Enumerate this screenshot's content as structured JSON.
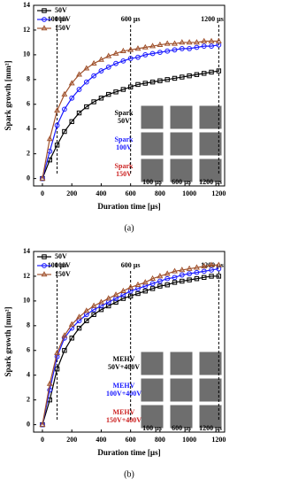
{
  "chart_data": [
    {
      "type": "line",
      "caption": "(a)",
      "xlabel": "Duration time [µs]",
      "ylabel": "Spark growth [mm²]",
      "x": [
        0,
        50,
        100,
        150,
        200,
        250,
        300,
        350,
        400,
        450,
        500,
        550,
        600,
        650,
        700,
        750,
        800,
        850,
        900,
        950,
        1000,
        1050,
        1100,
        1150,
        1200
      ],
      "series": [
        {
          "name": "50V",
          "color": "#000000",
          "marker": "square",
          "values": [
            0,
            1.5,
            2.7,
            3.8,
            4.6,
            5.3,
            5.8,
            6.2,
            6.5,
            6.8,
            7.0,
            7.2,
            7.4,
            7.6,
            7.7,
            7.8,
            7.9,
            8.0,
            8.1,
            8.2,
            8.3,
            8.4,
            8.5,
            8.6,
            8.7
          ]
        },
        {
          "name": "100V",
          "color": "#1a1aff",
          "marker": "circle",
          "values": [
            0,
            2.2,
            4.3,
            5.6,
            6.5,
            7.2,
            7.8,
            8.3,
            8.7,
            9.0,
            9.3,
            9.5,
            9.7,
            9.8,
            10.0,
            10.1,
            10.2,
            10.3,
            10.4,
            10.5,
            10.5,
            10.6,
            10.7,
            10.7,
            10.8
          ]
        },
        {
          "name": "150V",
          "color": "#a0522d",
          "marker": "triangle",
          "values": [
            0,
            3.2,
            5.5,
            6.8,
            7.7,
            8.4,
            8.9,
            9.3,
            9.6,
            9.9,
            10.1,
            10.3,
            10.4,
            10.5,
            10.6,
            10.7,
            10.8,
            10.9,
            10.9,
            11.0,
            11.0,
            11.0,
            11.1,
            11.1,
            11.1
          ]
        }
      ],
      "xlim": [
        -60,
        1240
      ],
      "xticks": [
        0,
        200,
        400,
        600,
        800,
        1000,
        1200
      ],
      "ylim": [
        -0.6,
        14
      ],
      "yticks": [
        0,
        2,
        4,
        6,
        8,
        10,
        12,
        14
      ],
      "markers": [
        {
          "x": 100,
          "label": "100 µs"
        },
        {
          "x": 600,
          "label": "600 µs"
        },
        {
          "x": 1200,
          "label": "1200 µs"
        }
      ],
      "inset_labels": [
        {
          "lines": [
            "Spark",
            "50V"
          ],
          "color": "#000000"
        },
        {
          "lines": [
            "Spark",
            "100V"
          ],
          "color": "#1a1aff"
        },
        {
          "lines": [
            "Spark",
            "150V"
          ],
          "color": "#cc2222"
        }
      ],
      "inset_columns": [
        "100 µs",
        "600 µs",
        "1200 µs"
      ]
    },
    {
      "type": "line",
      "caption": "(b)",
      "xlabel": "Duration time [µs]",
      "ylabel": "Spark growth [mm²]",
      "x": [
        0,
        50,
        100,
        150,
        200,
        250,
        300,
        350,
        400,
        450,
        500,
        550,
        600,
        650,
        700,
        750,
        800,
        850,
        900,
        950,
        1000,
        1050,
        1100,
        1150,
        1200
      ],
      "series": [
        {
          "name": "50V",
          "color": "#000000",
          "marker": "square",
          "values": [
            0,
            2.0,
            4.5,
            6.0,
            7.0,
            7.8,
            8.4,
            8.9,
            9.3,
            9.6,
            9.9,
            10.2,
            10.4,
            10.6,
            10.8,
            11.0,
            11.2,
            11.3,
            11.5,
            11.6,
            11.7,
            11.8,
            11.9,
            12.0,
            12.0
          ]
        },
        {
          "name": "100V",
          "color": "#1a1aff",
          "marker": "circle",
          "values": [
            0,
            2.8,
            5.5,
            7.0,
            7.8,
            8.4,
            8.9,
            9.3,
            9.6,
            9.9,
            10.2,
            10.5,
            10.8,
            11.0,
            11.2,
            11.4,
            11.6,
            11.8,
            11.9,
            12.1,
            12.2,
            12.3,
            12.4,
            12.5,
            12.6
          ]
        },
        {
          "name": "150V",
          "color": "#a0522d",
          "marker": "triangle",
          "values": [
            0,
            3.3,
            5.8,
            7.2,
            8.1,
            8.7,
            9.2,
            9.6,
            9.9,
            10.2,
            10.5,
            10.8,
            11.1,
            11.3,
            11.5,
            11.8,
            12.0,
            12.2,
            12.4,
            12.5,
            12.6,
            12.7,
            12.8,
            12.9,
            12.9
          ]
        }
      ],
      "xlim": [
        -60,
        1240
      ],
      "xticks": [
        0,
        200,
        400,
        600,
        800,
        1000,
        1200
      ],
      "ylim": [
        -0.6,
        14
      ],
      "yticks": [
        0,
        2,
        4,
        6,
        8,
        10,
        12,
        14
      ],
      "markers": [
        {
          "x": 100,
          "label": "100 µs"
        },
        {
          "x": 600,
          "label": "600 µs"
        },
        {
          "x": 1200,
          "label": "1200 µs"
        }
      ],
      "inset_labels": [
        {
          "lines": [
            "MEHV",
            "50V+400V"
          ],
          "color": "#000000"
        },
        {
          "lines": [
            "MEHV",
            "100V+400V"
          ],
          "color": "#1a1aff"
        },
        {
          "lines": [
            "MEHV",
            "150V+400V"
          ],
          "color": "#cc2222"
        }
      ],
      "inset_columns": [
        "100 µs",
        "600 µs",
        "1200 µs"
      ]
    }
  ]
}
